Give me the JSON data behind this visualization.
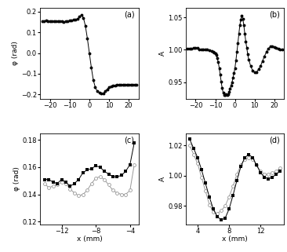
{
  "panel_a": {
    "label": "(a)",
    "ylabel": "φ (rad)",
    "xlim": [
      -25,
      25
    ],
    "ylim": [
      -0.22,
      0.22
    ],
    "yticks": [
      -0.2,
      -0.1,
      0,
      0.1,
      0.2
    ],
    "xticks": [
      -20,
      -10,
      0,
      10,
      20
    ],
    "x": [
      -24,
      -23,
      -22,
      -21,
      -20,
      -19,
      -18,
      -17,
      -16,
      -15,
      -14,
      -13,
      -12,
      -11,
      -10,
      -9,
      -8,
      -7,
      -6,
      -5,
      -4,
      -3,
      -2,
      -1,
      0,
      1,
      2,
      3,
      4,
      5,
      6,
      7,
      8,
      9,
      10,
      11,
      12,
      13,
      14,
      15,
      16,
      17,
      18,
      19,
      20,
      21,
      22,
      23,
      24
    ],
    "y": [
      0.155,
      0.155,
      0.158,
      0.155,
      0.155,
      0.153,
      0.155,
      0.155,
      0.155,
      0.156,
      0.155,
      0.152,
      0.153,
      0.153,
      0.157,
      0.157,
      0.162,
      0.163,
      0.165,
      0.175,
      0.185,
      0.17,
      0.13,
      0.07,
      0.0,
      -0.07,
      -0.13,
      -0.165,
      -0.185,
      -0.19,
      -0.195,
      -0.195,
      -0.185,
      -0.175,
      -0.165,
      -0.16,
      -0.158,
      -0.158,
      -0.155,
      -0.155,
      -0.155,
      -0.153,
      -0.152,
      -0.152,
      -0.152,
      -0.152,
      -0.152,
      -0.152,
      -0.152
    ]
  },
  "panel_b": {
    "label": "(b)",
    "ylabel": "A",
    "xlim": [
      -25,
      25
    ],
    "ylim": [
      0.925,
      1.065
    ],
    "yticks": [
      0.95,
      1.0,
      1.05
    ],
    "xticks": [
      -20,
      -10,
      0,
      10,
      20
    ],
    "x": [
      -24,
      -23,
      -22,
      -21,
      -20,
      -19,
      -18,
      -17,
      -16,
      -15,
      -14,
      -13,
      -12,
      -11,
      -10.5,
      -10,
      -9.5,
      -9,
      -8.5,
      -8,
      -7.5,
      -7,
      -6.5,
      -6,
      -5.5,
      -5,
      -4.5,
      -4,
      -3.5,
      -3,
      -2.5,
      -2,
      -1.5,
      -1,
      -0.5,
      0,
      0.5,
      1,
      1.5,
      2,
      2.5,
      3,
      3.5,
      4,
      4.5,
      5,
      5.5,
      6,
      6.5,
      7,
      8,
      9,
      10,
      11,
      12,
      13,
      14,
      15,
      16,
      17,
      18,
      19,
      20,
      21,
      22,
      23,
      24
    ],
    "y": [
      1.002,
      1.002,
      1.002,
      1.003,
      1.003,
      1.003,
      1.001,
      1.001,
      1.001,
      1.001,
      1.0,
      0.999,
      0.998,
      0.997,
      0.996,
      0.994,
      0.992,
      0.987,
      0.981,
      0.972,
      0.962,
      0.951,
      0.941,
      0.934,
      0.931,
      0.931,
      0.932,
      0.931,
      0.932,
      0.935,
      0.94,
      0.945,
      0.95,
      0.957,
      0.964,
      0.972,
      0.984,
      0.997,
      1.01,
      1.025,
      1.038,
      1.047,
      1.052,
      1.048,
      1.038,
      1.025,
      1.013,
      1.003,
      0.993,
      0.985,
      0.975,
      0.968,
      0.965,
      0.966,
      0.97,
      0.975,
      0.983,
      0.99,
      0.997,
      1.002,
      1.005,
      1.005,
      1.004,
      1.003,
      1.002,
      1.001,
      1.0
    ]
  },
  "panel_c": {
    "label": "(c)",
    "ylabel": "φ (rad)",
    "xlabel": "x (mm)",
    "xlim": [
      -14.5,
      -3.0
    ],
    "ylim": [
      0.118,
      0.185
    ],
    "yticks": [
      0.12,
      0.14,
      0.16,
      0.18
    ],
    "xticks": [
      -12,
      -8,
      -4
    ],
    "x_black": [
      -14,
      -13.5,
      -13,
      -12.5,
      -12,
      -11.5,
      -11,
      -10.5,
      -10,
      -9.5,
      -9,
      -8.5,
      -8,
      -7.5,
      -7,
      -6.5,
      -6,
      -5.5,
      -5,
      -4.5,
      -4,
      -3.5
    ],
    "y_black": [
      0.151,
      0.151,
      0.149,
      0.148,
      0.151,
      0.149,
      0.146,
      0.148,
      0.151,
      0.156,
      0.158,
      0.159,
      0.161,
      0.16,
      0.157,
      0.155,
      0.153,
      0.153,
      0.154,
      0.157,
      0.162,
      0.178
    ],
    "x_gray": [
      -14,
      -13.5,
      -13,
      -12.5,
      -12,
      -11.5,
      -11,
      -10.5,
      -10,
      -9.5,
      -9,
      -8.5,
      -8,
      -7.5,
      -7,
      -6.5,
      -6,
      -5.5,
      -5,
      -4.5,
      -4,
      -3.5
    ],
    "y_gray": [
      0.148,
      0.145,
      0.146,
      0.147,
      0.149,
      0.148,
      0.144,
      0.141,
      0.139,
      0.14,
      0.143,
      0.148,
      0.152,
      0.153,
      0.151,
      0.147,
      0.143,
      0.141,
      0.14,
      0.14,
      0.143,
      0.162
    ]
  },
  "panel_d": {
    "label": "(d)",
    "ylabel": "A",
    "xlabel": "x (mm)",
    "xlim": [
      2.5,
      15.0
    ],
    "ylim": [
      0.968,
      1.028
    ],
    "yticks": [
      0.98,
      1.0,
      1.02
    ],
    "xticks": [
      4,
      8,
      12
    ],
    "x_black": [
      3,
      3.5,
      4,
      4.5,
      5,
      5.5,
      6,
      6.5,
      7,
      7.5,
      8,
      8.5,
      9,
      9.5,
      10,
      10.5,
      11,
      11.5,
      12,
      12.5,
      13,
      13.5,
      14,
      14.5
    ],
    "y_black": [
      1.024,
      1.018,
      1.012,
      1.004,
      0.995,
      0.986,
      0.978,
      0.973,
      0.971,
      0.972,
      0.978,
      0.987,
      0.997,
      1.006,
      1.012,
      1.014,
      1.012,
      1.007,
      1.002,
      0.999,
      0.998,
      0.999,
      1.001,
      1.003
    ],
    "x_gray": [
      3,
      3.5,
      4,
      4.5,
      5,
      5.5,
      6,
      6.5,
      7,
      7.5,
      8,
      8.5,
      9,
      9.5,
      10,
      10.5,
      11,
      11.5,
      12,
      12.5,
      13,
      13.5,
      14,
      14.5
    ],
    "y_gray": [
      1.02,
      1.014,
      1.008,
      0.999,
      0.99,
      0.981,
      0.976,
      0.975,
      0.977,
      0.98,
      0.986,
      0.993,
      1.001,
      1.007,
      1.011,
      1.012,
      1.011,
      1.007,
      1.003,
      1.001,
      1.001,
      1.002,
      1.003,
      1.005
    ]
  },
  "marker_size": 2.8,
  "line_width": 0.7,
  "black_color": "#000000",
  "gray_color": "#999999",
  "background_color": "#ffffff"
}
